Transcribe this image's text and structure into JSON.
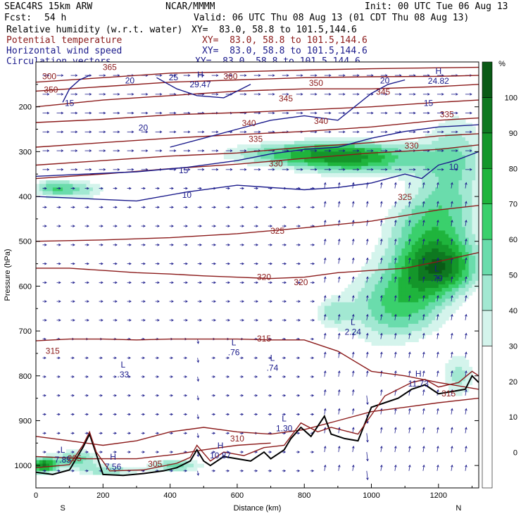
{
  "header": {
    "model": "SEAC4RS 15km ARW",
    "org": "NCAR/MMMM",
    "init": "Init: 00 UTC Tue 06 Aug 13",
    "fcst_label": "Fcst:",
    "fcst_value": "54 h",
    "valid": "Valid: 06 UTC Thu 08 Aug 13 (01 CDT Thu 08 Aug 13)",
    "fields": [
      {
        "name": "Relative humidity (w.r.t. water)",
        "xy": "XY=  83.0, 58.8 to 101.5,144.6",
        "color": "#000000"
      },
      {
        "name": "Potential temperature",
        "xy": "XY=  83.0, 58.8 to 101.5,144.6",
        "color": "#8b1a1a"
      },
      {
        "name": "Horizontal wind speed",
        "xy": "XY=  83.0, 58.8 to 101.5,144.6",
        "color": "#1a1a8b"
      },
      {
        "name": "Circulation vectors",
        "xy": "XY=  83.0, 58.8 to 101.5,144.6",
        "color": "#1a1a8b"
      }
    ]
  },
  "chart_data": {
    "type": "heatmap",
    "title": "",
    "xlabel": "Distance (km)",
    "ylabel": "Pressure (hPa)",
    "xlim": [
      0,
      1320
    ],
    "ylim": [
      1050,
      100
    ],
    "x_ticks": [
      0,
      200,
      400,
      600,
      800,
      1000,
      1200
    ],
    "y_ticks": [
      200,
      300,
      400,
      500,
      600,
      700,
      800,
      900,
      1000
    ],
    "end_labels": {
      "left": "S",
      "right": "N"
    },
    "colorbar": {
      "unit": "%",
      "ticks": [
        0,
        10,
        20,
        30,
        40,
        50,
        60,
        70,
        80,
        90,
        100
      ],
      "levels": [
        {
          "from": -10,
          "to": 30,
          "color": "#ffffff"
        },
        {
          "from": 30,
          "to": 40,
          "color": "#d4f4ec"
        },
        {
          "from": 40,
          "to": 50,
          "color": "#a2e8d2"
        },
        {
          "from": 50,
          "to": 60,
          "color": "#6adcac"
        },
        {
          "from": 60,
          "to": 70,
          "color": "#3ad06c"
        },
        {
          "from": 70,
          "to": 80,
          "color": "#1fb43c"
        },
        {
          "from": 80,
          "to": 90,
          "color": "#14962a"
        },
        {
          "from": 90,
          "to": 100,
          "color": "#0e7820"
        },
        {
          "from": 100,
          "to": 110,
          "color": "#0a5a16"
        }
      ]
    },
    "theta_contours": [
      {
        "value": 305,
        "points": [
          [
            0,
            980
          ],
          [
            150,
            985
          ],
          [
            300,
            985
          ],
          [
            420,
            975
          ],
          [
            500,
            965
          ],
          [
            600,
            955
          ],
          [
            700,
            950
          ]
        ]
      },
      {
        "value": 310,
        "points": [
          [
            0,
            935
          ],
          [
            100,
            945
          ],
          [
            200,
            955
          ],
          [
            300,
            945
          ],
          [
            400,
            925
          ],
          [
            500,
            915
          ],
          [
            600,
            925
          ],
          [
            700,
            930
          ],
          [
            800,
            920
          ],
          [
            900,
            900
          ],
          [
            1000,
            880
          ],
          [
            1100,
            870
          ],
          [
            1200,
            860
          ],
          [
            1320,
            850
          ]
        ]
      },
      {
        "value": 315,
        "points": [
          [
            0,
            722
          ],
          [
            100,
            718
          ],
          [
            200,
            718
          ],
          [
            300,
            720
          ],
          [
            400,
            718
          ],
          [
            500,
            718
          ],
          [
            600,
            718
          ],
          [
            700,
            720
          ],
          [
            800,
            720
          ],
          [
            900,
            745
          ],
          [
            1000,
            790
          ],
          [
            1100,
            800
          ],
          [
            1200,
            815
          ],
          [
            1320,
            830
          ]
        ]
      },
      {
        "value": 320,
        "points": [
          [
            0,
            560
          ],
          [
            100,
            560
          ],
          [
            200,
            565
          ],
          [
            300,
            570
          ],
          [
            400,
            573
          ],
          [
            500,
            577
          ],
          [
            600,
            580
          ],
          [
            700,
            583
          ],
          [
            800,
            580
          ],
          [
            900,
            570
          ],
          [
            1000,
            565
          ],
          [
            1100,
            560
          ],
          [
            1200,
            545
          ],
          [
            1320,
            525
          ]
        ]
      },
      {
        "value": 325,
        "points": [
          [
            0,
            500
          ],
          [
            200,
            497
          ],
          [
            400,
            492
          ],
          [
            600,
            483
          ],
          [
            800,
            470
          ],
          [
            1000,
            455
          ],
          [
            1200,
            430
          ],
          [
            1320,
            420
          ]
        ]
      },
      {
        "value": 330,
        "points": [
          [
            0,
            360
          ],
          [
            200,
            350
          ],
          [
            400,
            338
          ],
          [
            600,
            328
          ],
          [
            800,
            315
          ],
          [
            1000,
            303
          ],
          [
            1200,
            295
          ],
          [
            1320,
            285
          ]
        ]
      },
      {
        "value": 335,
        "points": [
          [
            0,
            330
          ],
          [
            200,
            320
          ],
          [
            400,
            310
          ],
          [
            600,
            303
          ],
          [
            800,
            290
          ],
          [
            1000,
            280
          ],
          [
            1200,
            265
          ],
          [
            1320,
            260
          ]
        ]
      },
      {
        "value": 340,
        "points": [
          [
            0,
            290
          ],
          [
            200,
            280
          ],
          [
            400,
            270
          ],
          [
            600,
            262
          ],
          [
            800,
            255
          ],
          [
            1000,
            245
          ],
          [
            1200,
            230
          ],
          [
            1320,
            225
          ]
        ]
      },
      {
        "value": 345,
        "points": [
          [
            0,
            235
          ],
          [
            200,
            228
          ],
          [
            400,
            218
          ],
          [
            600,
            213
          ],
          [
            800,
            207
          ],
          [
            1000,
            200
          ],
          [
            1200,
            190
          ],
          [
            1320,
            185
          ]
        ]
      },
      {
        "value": 350,
        "points": [
          [
            0,
            200
          ],
          [
            200,
            185
          ],
          [
            400,
            175
          ],
          [
            600,
            165
          ],
          [
            800,
            160
          ],
          [
            1000,
            160
          ],
          [
            1200,
            155
          ],
          [
            1320,
            150
          ]
        ]
      },
      {
        "value": 355,
        "points": [
          [
            0,
            165
          ],
          [
            200,
            155
          ],
          [
            400,
            145
          ],
          [
            600,
            140
          ],
          [
            800,
            135
          ],
          [
            1000,
            133
          ],
          [
            1200,
            132
          ],
          [
            1320,
            130
          ]
        ]
      },
      {
        "value": 360,
        "points": [
          [
            0,
            145
          ],
          [
            200,
            135
          ],
          [
            400,
            125
          ],
          [
            600,
            122
          ],
          [
            800,
            118
          ],
          [
            1000,
            115
          ],
          [
            1200,
            113
          ],
          [
            1320,
            112
          ]
        ]
      }
    ],
    "theta_labels": [
      {
        "text": "365",
        "x": 220,
        "y": 115
      },
      {
        "text": "300",
        "x": 40,
        "y": 135
      },
      {
        "text": "360",
        "x": 580,
        "y": 135
      },
      {
        "text": "350",
        "x": 45,
        "y": 165
      },
      {
        "text": "350",
        "x": 835,
        "y": 150
      },
      {
        "text": "345",
        "x": 745,
        "y": 185
      },
      {
        "text": "345",
        "x": 1035,
        "y": 170
      },
      {
        "text": "340",
        "x": 635,
        "y": 240
      },
      {
        "text": "340",
        "x": 850,
        "y": 235
      },
      {
        "text": "335",
        "x": 655,
        "y": 275
      },
      {
        "text": "335",
        "x": 1225,
        "y": 220
      },
      {
        "text": "330",
        "x": 715,
        "y": 330
      },
      {
        "text": "330",
        "x": 1120,
        "y": 290
      },
      {
        "text": "325",
        "x": 720,
        "y": 480
      },
      {
        "text": "325",
        "x": 1100,
        "y": 405
      },
      {
        "text": "320",
        "x": 680,
        "y": 583
      },
      {
        "text": "320",
        "x": 790,
        "y": 595
      },
      {
        "text": "315",
        "x": 50,
        "y": 748
      },
      {
        "text": "315",
        "x": 680,
        "y": 720
      },
      {
        "text": "315",
        "x": 1230,
        "y": 843
      },
      {
        "text": "310",
        "x": 600,
        "y": 943
      },
      {
        "text": "305",
        "x": 355,
        "y": 1000
      },
      {
        "text": "295",
        "x": 115,
        "y": 987
      }
    ],
    "wind_contours": [
      {
        "value": 10,
        "points": [
          [
            0,
            400
          ],
          [
            150,
            405
          ],
          [
            300,
            410
          ],
          [
            450,
            390
          ],
          [
            600,
            375
          ],
          [
            700,
            380
          ],
          [
            800,
            385
          ],
          [
            900,
            380
          ],
          [
            1000,
            370
          ],
          [
            1100,
            350
          ],
          [
            1150,
            360
          ],
          [
            1200,
            330
          ],
          [
            1250,
            320
          ],
          [
            1320,
            300
          ]
        ]
      },
      {
        "value": 15,
        "points": [
          [
            0,
            355
          ],
          [
            150,
            350
          ],
          [
            300,
            345
          ],
          [
            450,
            335
          ],
          [
            600,
            320
          ],
          [
            700,
            305
          ],
          [
            800,
            295
          ],
          [
            900,
            290
          ],
          [
            1000,
            270
          ],
          [
            1100,
            255
          ],
          [
            1200,
            245
          ],
          [
            1320,
            240
          ]
        ]
      },
      {
        "value": 20,
        "points": [
          [
            400,
            290
          ],
          [
            500,
            270
          ],
          [
            600,
            250
          ],
          [
            700,
            230
          ],
          [
            800,
            220
          ],
          [
            900,
            230
          ],
          [
            950,
            200
          ],
          [
            1000,
            170
          ],
          [
            1050,
            150
          ],
          [
            1100,
            140
          ]
        ]
      },
      {
        "value": 25,
        "points": [
          [
            360,
            135
          ],
          [
            420,
            160
          ],
          [
            480,
            175
          ],
          [
            560,
            180
          ],
          [
            600,
            165
          ],
          [
            640,
            150
          ]
        ]
      },
      {
        "value": 15,
        "points": [
          [
            80,
            190
          ],
          [
            100,
            160
          ],
          [
            130,
            140
          ],
          [
            160,
            130
          ]
        ]
      }
    ],
    "wind_labels": [
      {
        "text": "10",
        "x": 450,
        "y": 400
      },
      {
        "text": "10",
        "x": 1245,
        "y": 337
      },
      {
        "text": "15",
        "x": 100,
        "y": 195
      },
      {
        "text": "15",
        "x": 440,
        "y": 345
      },
      {
        "text": "15",
        "x": 1170,
        "y": 195
      },
      {
        "text": "20",
        "x": 320,
        "y": 250
      },
      {
        "text": "20",
        "x": 280,
        "y": 145
      },
      {
        "text": "20",
        "x": 1040,
        "y": 145
      },
      {
        "text": "25",
        "x": 410,
        "y": 138
      }
    ],
    "extrema": [
      {
        "kind": "H",
        "value": "29.47",
        "x": 490,
        "y": 138
      },
      {
        "kind": "H",
        "value": "24.82",
        "x": 1200,
        "y": 130
      },
      {
        "kind": "L",
        "value": ".79",
        "x": 1195,
        "y": 570
      },
      {
        "kind": "L",
        "value": "2.24",
        "x": 945,
        "y": 690
      },
      {
        "kind": "L",
        "value": ".76",
        "x": 590,
        "y": 735
      },
      {
        "kind": "L",
        "value": ".74",
        "x": 705,
        "y": 770
      },
      {
        "kind": "L",
        "value": ".33",
        "x": 260,
        "y": 785
      },
      {
        "kind": "H",
        "value": "11.73",
        "x": 1140,
        "y": 805
      },
      {
        "kind": "L",
        "value": "1.30",
        "x": 740,
        "y": 905
      },
      {
        "kind": "H",
        "value": "10.87",
        "x": 550,
        "y": 965
      },
      {
        "kind": "H",
        "value": "7.56",
        "x": 230,
        "y": 990
      },
      {
        "kind": "L",
        "value": "7.85",
        "x": 80,
        "y": 975
      }
    ],
    "terrain": [
      [
        0,
        1015
      ],
      [
        50,
        1020
      ],
      [
        100,
        1010
      ],
      [
        140,
        960
      ],
      [
        160,
        930
      ],
      [
        180,
        975
      ],
      [
        200,
        1020
      ],
      [
        260,
        1022
      ],
      [
        320,
        1018
      ],
      [
        380,
        1012
      ],
      [
        420,
        1005
      ],
      [
        460,
        990
      ],
      [
        480,
        965
      ],
      [
        500,
        990
      ],
      [
        520,
        1000
      ],
      [
        560,
        980
      ],
      [
        600,
        985
      ],
      [
        640,
        990
      ],
      [
        680,
        970
      ],
      [
        700,
        985
      ],
      [
        740,
        965
      ],
      [
        760,
        940
      ],
      [
        790,
        915
      ],
      [
        820,
        935
      ],
      [
        860,
        890
      ],
      [
        880,
        930
      ],
      [
        920,
        940
      ],
      [
        960,
        945
      ],
      [
        1000,
        870
      ],
      [
        1040,
        860
      ],
      [
        1080,
        850
      ],
      [
        1120,
        830
      ],
      [
        1160,
        820
      ],
      [
        1200,
        840
      ],
      [
        1240,
        835
      ],
      [
        1280,
        830
      ],
      [
        1300,
        800
      ],
      [
        1320,
        815
      ]
    ],
    "terrain_upper": [
      [
        0,
        1005
      ],
      [
        100,
        998
      ],
      [
        140,
        955
      ],
      [
        160,
        925
      ],
      [
        180,
        970
      ],
      [
        220,
        1012
      ],
      [
        320,
        1010
      ],
      [
        420,
        995
      ],
      [
        460,
        982
      ],
      [
        480,
        955
      ],
      [
        520,
        990
      ],
      [
        560,
        970
      ],
      [
        620,
        978
      ],
      [
        680,
        960
      ],
      [
        740,
        955
      ],
      [
        790,
        905
      ],
      [
        840,
        925
      ],
      [
        880,
        915
      ],
      [
        960,
        930
      ],
      [
        1040,
        845
      ],
      [
        1120,
        815
      ],
      [
        1160,
        808
      ],
      [
        1200,
        825
      ],
      [
        1260,
        815
      ],
      [
        1300,
        790
      ],
      [
        1320,
        800
      ]
    ]
  }
}
